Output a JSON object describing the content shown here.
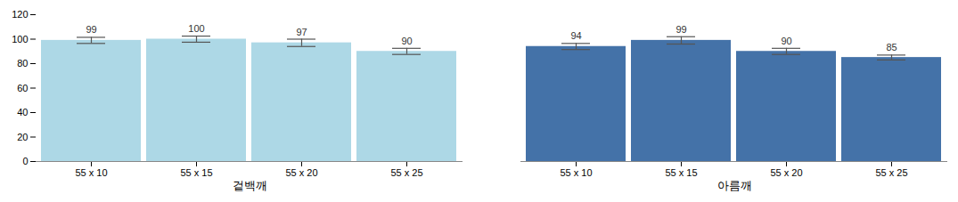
{
  "chart_data": {
    "type": "bar",
    "categories": [
      "55 x 10",
      "55 x 15",
      "55 x 20",
      "55 x 25"
    ],
    "series": [
      {
        "name": "겉백깨",
        "color": "#add8e6",
        "values": [
          99,
          100,
          97,
          90
        ],
        "errors": [
          2.5,
          2.5,
          3.0,
          2.5
        ]
      },
      {
        "name": "아름깨",
        "color": "#4472a8",
        "values": [
          94,
          99,
          90,
          85
        ],
        "errors": [
          2.5,
          3.0,
          2.5,
          2.0
        ]
      }
    ],
    "ylim": [
      0,
      120
    ],
    "yticks": [
      0,
      20,
      40,
      60,
      80,
      100,
      120
    ],
    "data_labels": true,
    "grid": false
  }
}
